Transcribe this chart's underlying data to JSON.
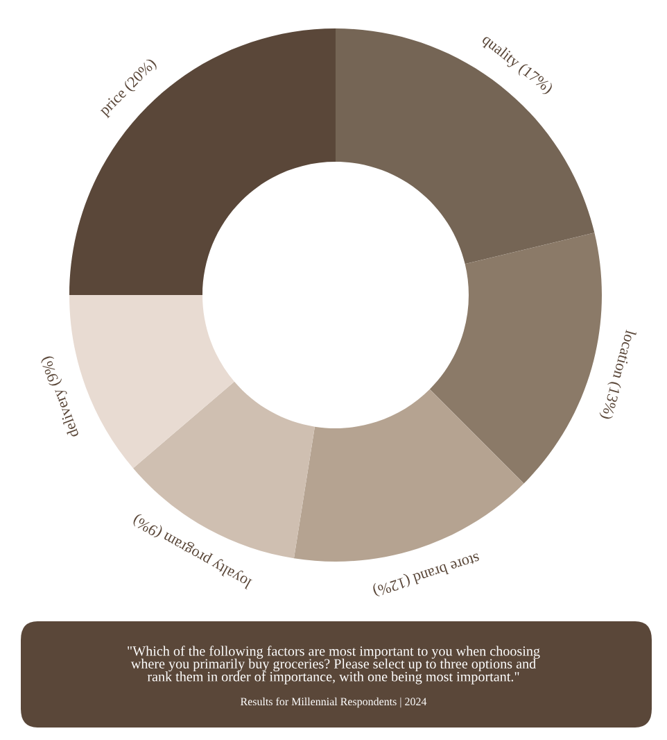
{
  "chart_data": {
    "type": "donut",
    "categories": [
      "quality",
      "location",
      "store brand",
      "loyalty program",
      "delivery",
      "price"
    ],
    "values": [
      17,
      13,
      12,
      9,
      9,
      20
    ],
    "value_labels": [
      "(17%)",
      "(13%)",
      "(12%)",
      "(9%)",
      "(9%)",
      "(20%)"
    ],
    "colors": [
      "#756555",
      "#8b7a68",
      "#b5a391",
      "#cfbfb1",
      "#e8dbd2",
      "#5a4739"
    ],
    "legend": false,
    "annotations": [
      "\"Which of the following factors are most important to you when choosing\nwhere you primarily buy groceries? Please select up to three options and\nrank them in order of importance, with one being most important.\"",
      "Results for Millennial Respondents | 2024"
    ]
  }
}
